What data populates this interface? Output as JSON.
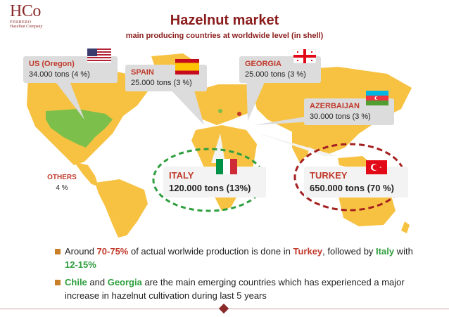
{
  "logo": {
    "main": "HCo",
    "sub1": "FERRERO",
    "sub2": "Hazelnut Company"
  },
  "title": "Hazelnut market",
  "subtitle": "main producing countries at worldwide level (in shell)",
  "countries": {
    "us": {
      "name": "US (Oregon)",
      "value": "34.000 tons (4 %)"
    },
    "spain": {
      "name": "SPAIN",
      "value": "25.000 tons (3 %)"
    },
    "georgia": {
      "name": "GEORGIA",
      "value": "25.000 tons (3 %)"
    },
    "azerbaijan": {
      "name": "AZERBAIJAN",
      "value": "30.000 tons (3 %)"
    },
    "italy": {
      "name": "ITALY",
      "value": "120.000 tons (13%)"
    },
    "turkey": {
      "name": "TURKEY",
      "value": "650.000 tons (70 %)"
    },
    "others": {
      "name": "OTHERS",
      "value": "4 %"
    }
  },
  "bullets": {
    "b1": {
      "t1": "Around ",
      "t2": "70-75%",
      "t3": " of actual worlwide production is done in ",
      "t4": "Turkey",
      "t5": ", followed by ",
      "t6": "Italy",
      "t7": " with ",
      "t8": "12-15%"
    },
    "b2": {
      "t1": "Chile",
      "t2": " and ",
      "t3": "Georgia",
      "t4": " are the main emerging countries which has experienced a major increase in hazelnut cultivation during last 5 years"
    }
  },
  "colors": {
    "accent": "#8b1c1c",
    "map": "#f7c242",
    "us_highlight": "#7cbf4a",
    "italy_ellipse": "#2e9e3e",
    "turkey_ellipse": "#a52020"
  }
}
